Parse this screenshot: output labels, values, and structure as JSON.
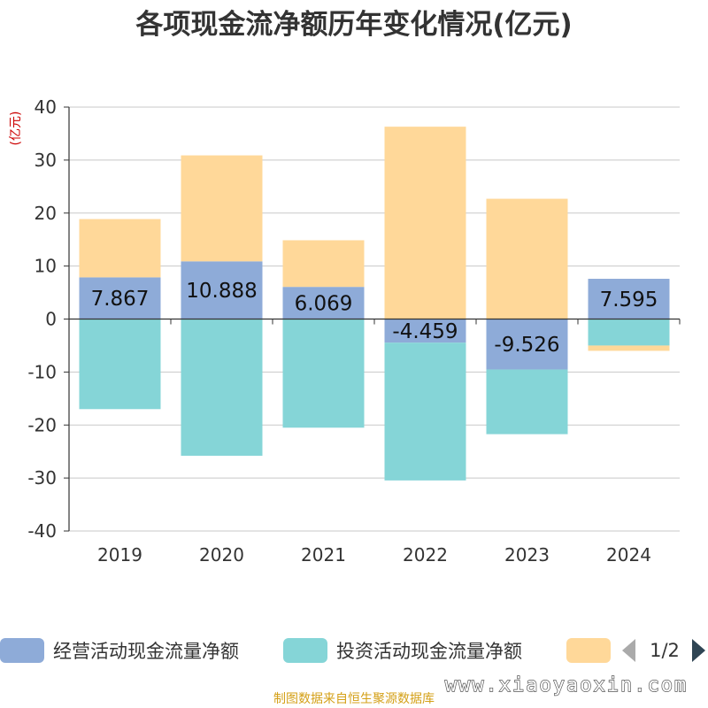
{
  "title": "各项现金流净额历年变化情况(亿元)",
  "unit_label": "(亿元)",
  "source_text": "制图数据来自恒生聚源数据库",
  "watermark_text": "www.xiaoyaoxin.com",
  "pager": {
    "text": "1/2"
  },
  "colors": {
    "operating": "#8eabd8",
    "investing": "#85d5d7",
    "financing": "#ffd899",
    "axis": "#333333",
    "grid": "#c8c8c8",
    "pager_prev": "#aaaaaa",
    "pager_next": "#2f4554"
  },
  "chart_data": {
    "type": "bar",
    "stacked": true,
    "categories": [
      "2019",
      "2020",
      "2021",
      "2022",
      "2023",
      "2024"
    ],
    "series": [
      {
        "name": "经营活动现金流量净额",
        "color_key": "operating",
        "values": [
          7.867,
          10.888,
          6.069,
          -4.459,
          -9.526,
          7.595
        ],
        "show_labels": true
      },
      {
        "name": "投资活动现金流量净额",
        "color_key": "investing",
        "values": [
          -17.0,
          -25.8,
          -20.5,
          -26.0,
          -12.2,
          -5.0
        ],
        "show_labels": false
      },
      {
        "name": "",
        "color_key": "financing",
        "values": [
          11.0,
          20.0,
          8.8,
          36.3,
          22.7,
          -1.0
        ],
        "show_labels": false
      }
    ],
    "y_ticks": [
      40,
      30,
      20,
      10,
      0,
      -10,
      -20,
      -30,
      -40
    ],
    "ylim": [
      -40,
      40
    ],
    "grid": true,
    "legend_position": "bottom"
  }
}
